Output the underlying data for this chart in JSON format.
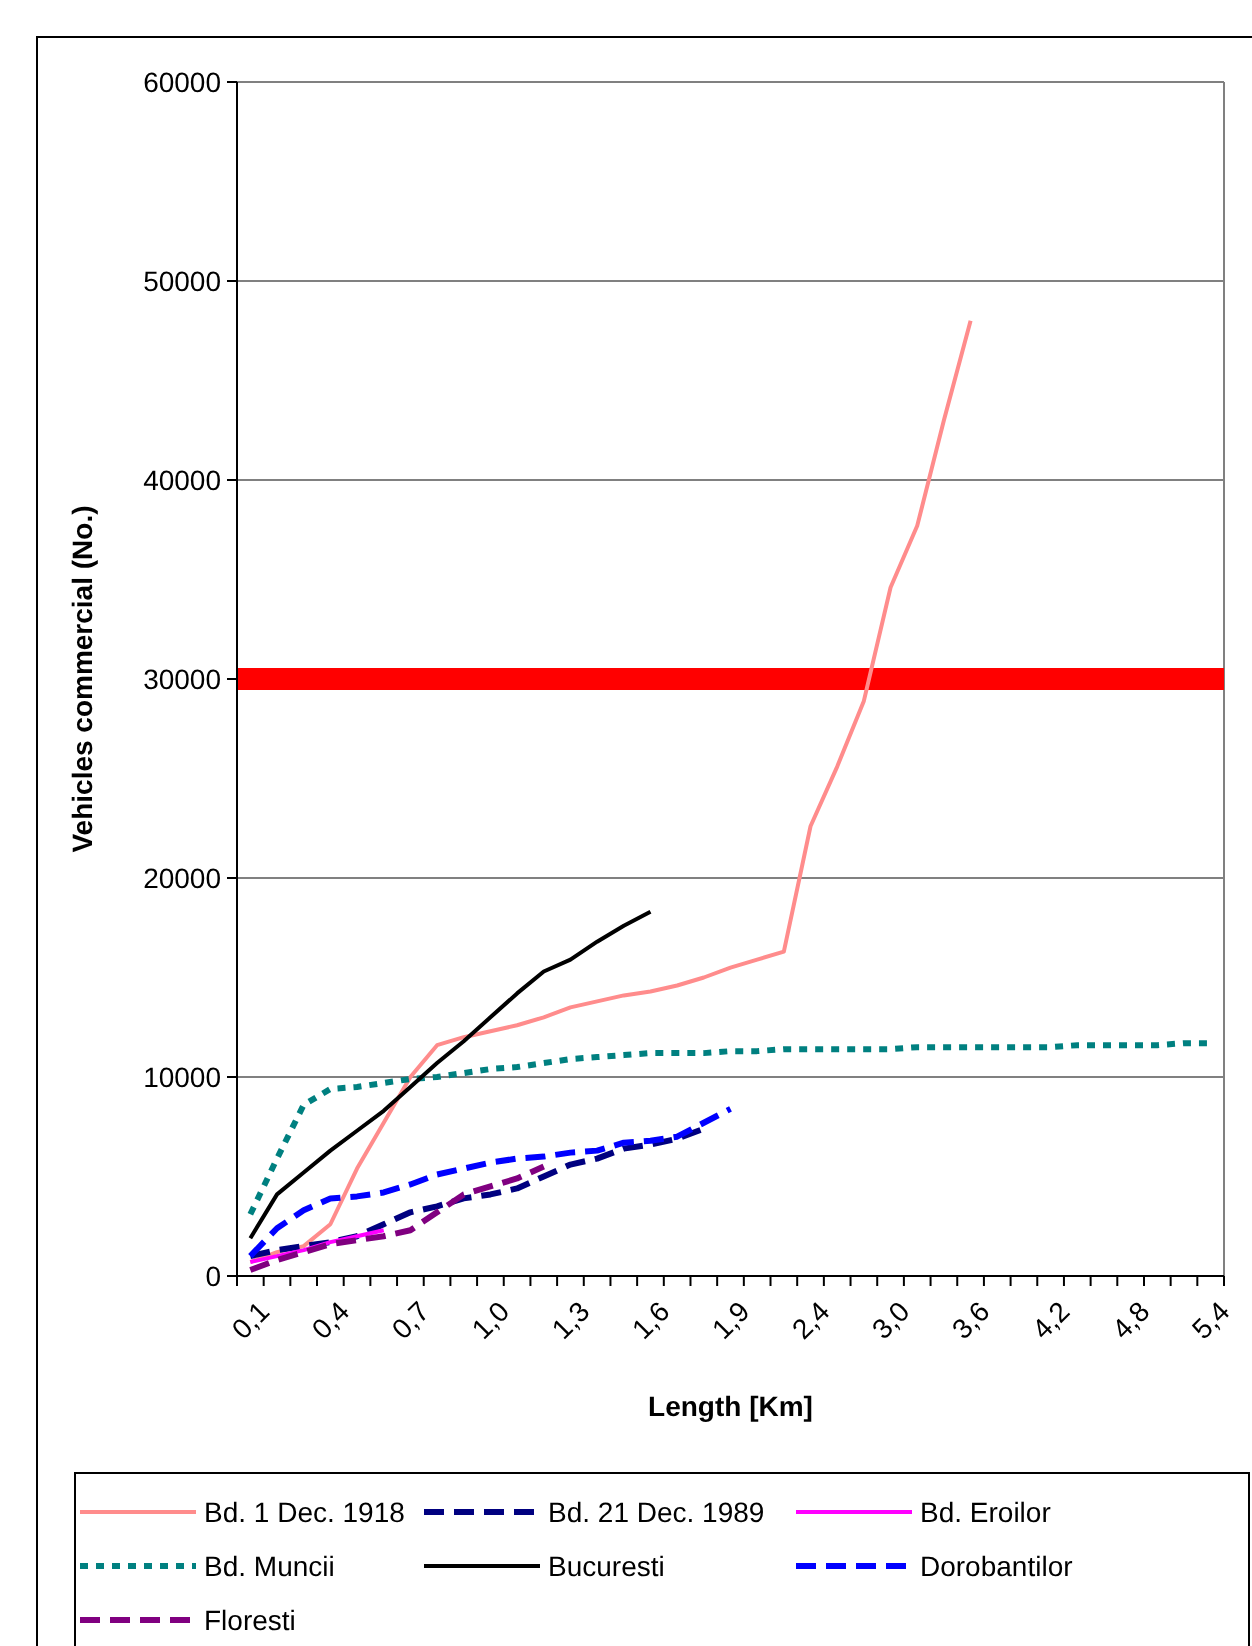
{
  "chart_data": {
    "type": "line",
    "xlabel": "Length [Km]",
    "ylabel": "Vehicles commercial (No.)",
    "categories": [
      "0,1",
      null,
      null,
      "0,4",
      null,
      null,
      "0,7",
      null,
      null,
      "1,0",
      null,
      null,
      "1,3",
      null,
      null,
      "1,6",
      null,
      null,
      "1,9",
      null,
      null,
      "2,4",
      null,
      null,
      "3,0",
      null,
      null,
      "3,6",
      null,
      null,
      "4,2",
      null,
      null,
      "4,8",
      null,
      null,
      "5,4"
    ],
    "ylim": [
      0,
      60000
    ],
    "yticks": [
      0,
      10000,
      20000,
      30000,
      40000,
      50000,
      60000
    ],
    "grid": "y",
    "legend": "bottom",
    "marker": "none",
    "ref_lines": [
      {
        "axis": "y",
        "value": 30000,
        "color": "#ff0000"
      }
    ],
    "series": [
      {
        "name": "Bd. 1 Dec. 1918",
        "color": "#ff8c8c",
        "line_style": "solid",
        "values": [
          700,
          1200,
          1500,
          2600,
          5400,
          7700,
          10000,
          11600,
          12000,
          12300,
          12600,
          13000,
          13500,
          13800,
          14100,
          14300,
          14600,
          15000,
          15500,
          15900,
          16300,
          22600,
          25600,
          28900,
          34600,
          37700,
          43000,
          48000,
          null,
          null,
          null,
          null,
          null,
          null,
          null,
          null,
          null
        ]
      },
      {
        "name": "Bd. 21 Dec. 1989",
        "color": "#000080",
        "line_style": "dashed",
        "values": [
          1000,
          1300,
          1500,
          1700,
          2000,
          2600,
          3200,
          3500,
          3900,
          4100,
          4400,
          5000,
          5600,
          5900,
          6400,
          6600,
          6900,
          7400,
          null,
          null,
          null,
          null,
          null,
          null,
          null,
          null,
          null,
          null,
          null,
          null,
          null,
          null,
          null,
          null,
          null,
          null,
          null
        ]
      },
      {
        "name": "Bd. Eroilor",
        "color": "#ff00ff",
        "line_style": "solid",
        "values": [
          700,
          1000,
          1300,
          1700,
          2000,
          2300,
          null,
          null,
          null,
          null,
          null,
          null,
          null,
          null,
          null,
          null,
          null,
          null,
          null,
          null,
          null,
          null,
          null,
          null,
          null,
          null,
          null,
          null,
          null,
          null,
          null,
          null,
          null,
          null,
          null,
          null,
          null
        ]
      },
      {
        "name": "Bd. Muncii",
        "color": "#008080",
        "line_style": "dotted",
        "values": [
          3100,
          5900,
          8600,
          9400,
          9500,
          9700,
          9900,
          10000,
          10200,
          10400,
          10500,
          10700,
          10900,
          11000,
          11100,
          11200,
          11200,
          11200,
          11300,
          11300,
          11400,
          11400,
          11400,
          11400,
          11400,
          11500,
          11500,
          11500,
          11500,
          11500,
          11500,
          11600,
          11600,
          11600,
          11600,
          11700,
          11700
        ]
      },
      {
        "name": "Bucuresti",
        "color": "#000000",
        "line_style": "solid",
        "values": [
          1900,
          4100,
          5200,
          6300,
          7300,
          8300,
          9500,
          10700,
          11800,
          13000,
          14200,
          15300,
          15900,
          16800,
          17600,
          18300,
          null,
          null,
          null,
          null,
          null,
          null,
          null,
          null,
          null,
          null,
          null,
          null,
          null,
          null,
          null,
          null,
          null,
          null,
          null,
          null,
          null
        ]
      },
      {
        "name": "Dorobantilor",
        "color": "#0000ff",
        "line_style": "dashed",
        "values": [
          1000,
          2400,
          3300,
          3900,
          4000,
          4200,
          4600,
          5100,
          5400,
          5700,
          5900,
          6000,
          6200,
          6300,
          6700,
          6800,
          7000,
          7700,
          8400,
          null,
          null,
          null,
          null,
          null,
          null,
          null,
          null,
          null,
          null,
          null,
          null,
          null,
          null,
          null,
          null,
          null,
          null
        ]
      },
      {
        "name": "Floresti",
        "color": "#800080",
        "line_style": "dashed",
        "values": [
          300,
          800,
          1200,
          1600,
          1800,
          2000,
          2300,
          3200,
          4100,
          4500,
          4900,
          5500,
          null,
          null,
          null,
          null,
          null,
          null,
          null,
          null,
          null,
          null,
          null,
          null,
          null,
          null,
          null,
          null,
          null,
          null,
          null,
          null,
          null,
          null,
          null,
          null,
          null
        ]
      }
    ]
  }
}
